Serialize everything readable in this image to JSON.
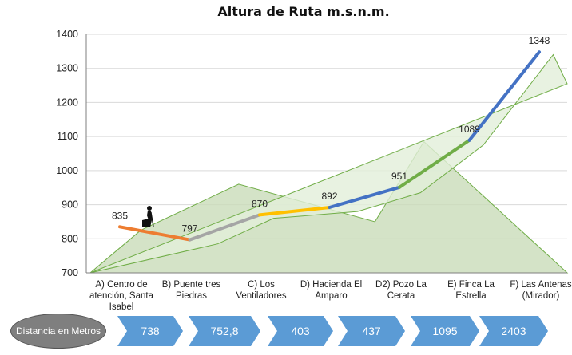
{
  "chart_data": {
    "type": "line",
    "title": "Altura de Ruta m.s.n.m.",
    "xlabel": "",
    "ylabel": "",
    "ylim": [
      700,
      1400
    ],
    "yticks": [
      700,
      800,
      900,
      1000,
      1100,
      1200,
      1300,
      1400
    ],
    "grid": true,
    "categories": [
      [
        "A) Centro de",
        "atención, Santa",
        "Isabel"
      ],
      [
        "B) Puente tres",
        "Piedras"
      ],
      [
        "C) Los",
        "Ventiladores"
      ],
      [
        "D) Hacienda El",
        "Amparo"
      ],
      [
        "D2) Pozo La",
        "Cerata"
      ],
      [
        "E) Finca La",
        "Estrella"
      ],
      [
        "F) Las Antenas",
        "(Mirador)"
      ]
    ],
    "series": [
      {
        "values": [
          835,
          797,
          870,
          892,
          951,
          1089,
          1348
        ],
        "data_labels": [
          "835",
          "797",
          "870",
          "892",
          "951",
          "1089",
          "1348"
        ],
        "segment_colors": [
          "#ed7d31",
          "#a5a5a5",
          "#ffc000",
          "#4472c4",
          "#70ad47",
          "#4472c4"
        ]
      }
    ],
    "background_areas": [
      {
        "x": [
          0,
          0.3,
          1.7,
          3.65,
          4.35,
          6.5
        ],
        "y": [
          700,
          825,
          960,
          850,
          1085,
          700
        ],
        "color": "#c9dcb9"
      },
      {
        "x": [
          0,
          1.4,
          2.2,
          3.4,
          4.3,
          5.2,
          6.2,
          6.5
        ],
        "y": [
          700,
          785,
          860,
          880,
          935,
          1075,
          1340,
          1255
        ],
        "color": "#e2efd9"
      }
    ]
  },
  "distances": {
    "label": "Distancia en Metros",
    "values": [
      "738",
      "752,8",
      "403",
      "437",
      "1095",
      "2403"
    ]
  }
}
